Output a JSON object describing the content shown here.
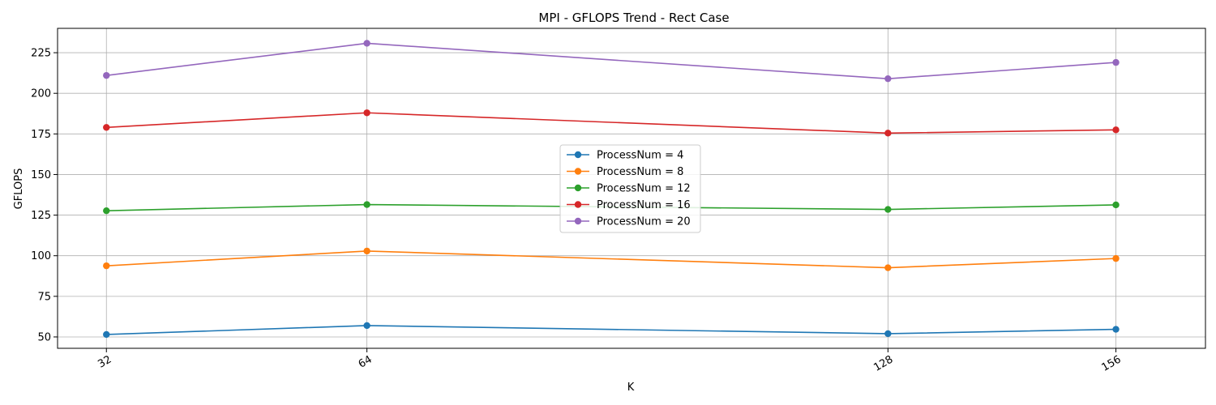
{
  "chart_data": {
    "type": "line",
    "title": "MPI - GFLOPS Trend - Rect Case",
    "xlabel": "K",
    "ylabel": "GFLOPS",
    "x": [
      32,
      64,
      128,
      156
    ],
    "x_tick_labels": [
      "32",
      "64",
      "128",
      "156"
    ],
    "xlim": [
      26,
      167
    ],
    "ylim": [
      43,
      240
    ],
    "y_ticks": [
      50,
      75,
      100,
      125,
      150,
      175,
      200,
      225
    ],
    "y_tick_labels": [
      "50",
      "75",
      "100",
      "125",
      "150",
      "175",
      "200",
      "225"
    ],
    "grid": true,
    "legend_position": "center",
    "series": [
      {
        "name": "ProcessNum = 4",
        "color": "#1f77b4",
        "values": [
          51.5,
          57.0,
          52.0,
          54.7
        ]
      },
      {
        "name": "ProcessNum = 8",
        "color": "#ff7f0e",
        "values": [
          93.8,
          102.9,
          92.6,
          98.3
        ]
      },
      {
        "name": "ProcessNum = 12",
        "color": "#2ca02c",
        "values": [
          127.7,
          131.5,
          128.5,
          131.3
        ]
      },
      {
        "name": "ProcessNum = 16",
        "color": "#d62728",
        "values": [
          179.0,
          188.0,
          175.5,
          177.5
        ]
      },
      {
        "name": "ProcessNum = 20",
        "color": "#9467bd",
        "values": [
          211.0,
          230.8,
          209.0,
          219.0
        ]
      }
    ]
  }
}
